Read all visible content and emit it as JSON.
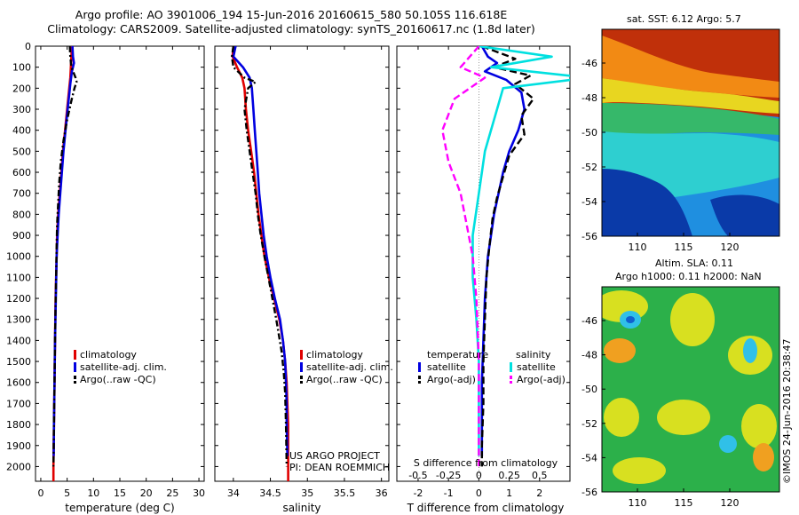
{
  "header": {
    "title_line1": "Argo profile: AO 3901006_194 15-Jun-2016 20160615_580 50.105S 116.618E",
    "title_line2": "Climatology: CARS2009. Satellite-adjusted climatology: synTS_20160617.nc (1.8d later)"
  },
  "chart_data": [
    {
      "type": "line",
      "panel": "temperature",
      "xlabel": "temperature (deg C)",
      "ylabel": "",
      "xlim": [
        -1,
        31
      ],
      "ylim": [
        2070,
        0
      ],
      "y_reversed": true,
      "xticks": [
        "0",
        "5",
        "10",
        "15",
        "20",
        "25",
        "30"
      ],
      "yticks": [
        "0",
        "100",
        "200",
        "300",
        "400",
        "500",
        "600",
        "700",
        "800",
        "900",
        "1000",
        "1100",
        "1200",
        "1300",
        "1400",
        "1500",
        "1600",
        "1700",
        "1800",
        "1900",
        "2000"
      ],
      "legend": [
        "climatology",
        "satellite-adj. clim.",
        "Argo(..raw -QC)"
      ],
      "series": [
        {
          "name": "climatology",
          "color": "#e00000",
          "style": "solid",
          "points": [
            [
              5.9,
              0
            ],
            [
              5.8,
              50
            ],
            [
              5.7,
              100
            ],
            [
              5.6,
              150
            ],
            [
              5.4,
              200
            ],
            [
              5.2,
              250
            ],
            [
              5.0,
              300
            ],
            [
              4.6,
              400
            ],
            [
              4.2,
              500
            ],
            [
              3.9,
              600
            ],
            [
              3.6,
              700
            ],
            [
              3.3,
              800
            ],
            [
              3.1,
              900
            ],
            [
              3.0,
              1000
            ],
            [
              2.8,
              1200
            ],
            [
              2.7,
              1400
            ],
            [
              2.6,
              1600
            ],
            [
              2.5,
              1800
            ],
            [
              2.4,
              2000
            ],
            [
              2.4,
              2070
            ]
          ]
        },
        {
          "name": "satellite-adj. clim.",
          "color": "#0000e0",
          "style": "solid",
          "points": [
            [
              6.0,
              0
            ],
            [
              6.1,
              50
            ],
            [
              6.3,
              80
            ],
            [
              5.9,
              120
            ],
            [
              5.6,
              180
            ],
            [
              5.4,
              230
            ],
            [
              5.1,
              300
            ],
            [
              4.7,
              400
            ],
            [
              4.3,
              500
            ],
            [
              4.0,
              600
            ],
            [
              3.7,
              700
            ],
            [
              3.4,
              800
            ],
            [
              3.2,
              900
            ],
            [
              3.0,
              1000
            ],
            [
              2.85,
              1200
            ],
            [
              2.7,
              1400
            ],
            [
              2.6,
              1600
            ],
            [
              2.5,
              1800
            ],
            [
              2.45,
              1950
            ]
          ]
        },
        {
          "name": "Argo(..raw -QC)",
          "color": "#000000",
          "style": "dashdot",
          "points": [
            [
              5.5,
              0
            ],
            [
              5.6,
              50
            ],
            [
              5.8,
              100
            ],
            [
              6.6,
              150
            ],
            [
              6.8,
              170
            ],
            [
              6.4,
              200
            ],
            [
              5.8,
              260
            ],
            [
              5.0,
              350
            ],
            [
              4.3,
              450
            ],
            [
              3.8,
              550
            ],
            [
              3.5,
              650
            ],
            [
              3.3,
              750
            ],
            [
              3.1,
              850
            ],
            [
              3.0,
              950
            ],
            [
              2.9,
              1100
            ],
            [
              2.75,
              1300
            ],
            [
              2.65,
              1500
            ],
            [
              2.55,
              1700
            ],
            [
              2.45,
              1900
            ],
            [
              2.4,
              2000
            ]
          ]
        }
      ]
    },
    {
      "type": "line",
      "panel": "salinity",
      "xlabel": "salinity",
      "ylabel": "",
      "xlim": [
        33.75,
        36.1
      ],
      "ylim": [
        2070,
        0
      ],
      "y_reversed": true,
      "xticks": [
        "34",
        "34.5",
        "35",
        "35.5",
        "36"
      ],
      "legend": [
        "climatology",
        "satellite-adj. clim.",
        "Argo(..raw -QC)"
      ],
      "annotation": [
        "US ARGO PROJECT",
        "PI: DEAN ROEMMICH"
      ],
      "series": [
        {
          "name": "climatology",
          "color": "#e00000",
          "style": "solid",
          "points": [
            [
              34.0,
              0
            ],
            [
              33.99,
              50
            ],
            [
              34.05,
              100
            ],
            [
              34.12,
              150
            ],
            [
              34.15,
              200
            ],
            [
              34.17,
              300
            ],
            [
              34.2,
              400
            ],
            [
              34.24,
              500
            ],
            [
              34.28,
              600
            ],
            [
              34.31,
              700
            ],
            [
              34.34,
              800
            ],
            [
              34.38,
              900
            ],
            [
              34.42,
              1000
            ],
            [
              34.48,
              1100
            ],
            [
              34.55,
              1200
            ],
            [
              34.62,
              1300
            ],
            [
              34.67,
              1400
            ],
            [
              34.7,
              1500
            ],
            [
              34.72,
              1600
            ],
            [
              34.73,
              1700
            ],
            [
              34.74,
              1800
            ],
            [
              34.74,
              2000
            ],
            [
              34.74,
              2070
            ]
          ]
        },
        {
          "name": "satellite-adj. clim.",
          "color": "#0000e0",
          "style": "solid",
          "points": [
            [
              34.03,
              0
            ],
            [
              34.0,
              50
            ],
            [
              34.13,
              100
            ],
            [
              34.22,
              150
            ],
            [
              34.25,
              200
            ],
            [
              34.27,
              300
            ],
            [
              34.29,
              400
            ],
            [
              34.31,
              500
            ],
            [
              34.33,
              600
            ],
            [
              34.35,
              700
            ],
            [
              34.38,
              800
            ],
            [
              34.41,
              900
            ],
            [
              34.45,
              1000
            ],
            [
              34.5,
              1100
            ],
            [
              34.56,
              1200
            ],
            [
              34.63,
              1300
            ],
            [
              34.67,
              1400
            ],
            [
              34.7,
              1500
            ],
            [
              34.71,
              1600
            ],
            [
              34.72,
              1700
            ],
            [
              34.72,
              1800
            ],
            [
              34.73,
              1950
            ]
          ]
        },
        {
          "name": "Argo(..raw -QC)",
          "color": "#000000",
          "style": "dashdot",
          "points": [
            [
              34.0,
              0
            ],
            [
              33.98,
              50
            ],
            [
              34.0,
              100
            ],
            [
              34.15,
              150
            ],
            [
              34.3,
              170
            ],
            [
              34.2,
              200
            ],
            [
              34.15,
              300
            ],
            [
              34.18,
              400
            ],
            [
              34.22,
              500
            ],
            [
              34.26,
              600
            ],
            [
              34.3,
              700
            ],
            [
              34.33,
              800
            ],
            [
              34.37,
              900
            ],
            [
              34.42,
              1000
            ],
            [
              34.5,
              1150
            ],
            [
              34.58,
              1300
            ],
            [
              34.65,
              1450
            ],
            [
              34.68,
              1550
            ],
            [
              34.7,
              1650
            ],
            [
              34.71,
              1800
            ],
            [
              34.72,
              2000
            ]
          ]
        }
      ]
    },
    {
      "type": "line",
      "panel": "difference",
      "xlabel": "T difference from climatology",
      "xlabel_top": "S difference from climatology",
      "ylabel": "",
      "xlim": [
        -2.7,
        3.0
      ],
      "ylim": [
        2070,
        0
      ],
      "y_reversed": true,
      "xticks": [
        "-2",
        "-1",
        "0",
        "1",
        "2"
      ],
      "xticks_top": [
        "-0.5",
        "-0.25",
        "0",
        "0.25",
        "0.5"
      ],
      "legend_headers": [
        "temperature",
        "salinity"
      ],
      "legend": [
        "satellite",
        "Argo(-adj)",
        "satellite",
        "Argo(-adj)"
      ],
      "series": [
        {
          "name": "temperature satellite",
          "color": "#0000e0",
          "style": "solid",
          "points": [
            [
              0.1,
              0
            ],
            [
              0.3,
              50
            ],
            [
              0.6,
              80
            ],
            [
              0.2,
              120
            ],
            [
              0.9,
              160
            ],
            [
              1.4,
              220
            ],
            [
              1.5,
              300
            ],
            [
              1.3,
              400
            ],
            [
              1.0,
              500
            ],
            [
              0.8,
              600
            ],
            [
              0.65,
              700
            ],
            [
              0.5,
              800
            ],
            [
              0.4,
              900
            ],
            [
              0.3,
              1000
            ],
            [
              0.2,
              1200
            ],
            [
              0.15,
              1400
            ],
            [
              0.1,
              1600
            ],
            [
              0.1,
              1800
            ],
            [
              0.1,
              1950
            ]
          ]
        },
        {
          "name": "temperature Argo(-adj)",
          "color": "#000000",
          "style": "dashed",
          "points": [
            [
              0.1,
              0
            ],
            [
              1.2,
              60
            ],
            [
              0.5,
              100
            ],
            [
              1.7,
              140
            ],
            [
              1.2,
              180
            ],
            [
              1.8,
              250
            ],
            [
              1.4,
              330
            ],
            [
              1.5,
              420
            ],
            [
              1.0,
              520
            ],
            [
              0.8,
              620
            ],
            [
              0.6,
              720
            ],
            [
              0.45,
              820
            ],
            [
              0.35,
              950
            ],
            [
              0.25,
              1100
            ],
            [
              0.2,
              1300
            ],
            [
              0.15,
              1500
            ],
            [
              0.15,
              1700
            ],
            [
              0.1,
              1900
            ],
            [
              0.1,
              2000
            ]
          ]
        },
        {
          "name": "salinity satellite",
          "color": "#00e0e0",
          "style": "solid",
          "points": [
            [
              0.0,
              0
            ],
            [
              0.6,
              50
            ],
            [
              0.1,
              100
            ],
            [
              0.9,
              150
            ],
            [
              0.2,
              200
            ],
            [
              0.15,
              300
            ],
            [
              0.05,
              500
            ],
            [
              0.0,
              700
            ],
            [
              -0.05,
              900
            ],
            [
              -0.05,
              1100
            ],
            [
              -0.02,
              1300
            ],
            [
              0.0,
              1500
            ],
            [
              0.0,
              1700
            ],
            [
              0.0,
              1950
            ]
          ]
        },
        {
          "name": "salinity Argo(-adj)",
          "color": "#ff00ff",
          "style": "dashed",
          "points": [
            [
              0.0,
              0
            ],
            [
              -0.15,
              100
            ],
            [
              0.05,
              150
            ],
            [
              -0.2,
              250
            ],
            [
              -0.3,
              400
            ],
            [
              -0.25,
              550
            ],
            [
              -0.15,
              700
            ],
            [
              -0.1,
              850
            ],
            [
              -0.05,
              1000
            ],
            [
              -0.02,
              1200
            ],
            [
              0.0,
              1500
            ],
            [
              0.0,
              1800
            ],
            [
              0.0,
              2000
            ]
          ]
        }
      ]
    }
  ],
  "map_sst": {
    "title": "sat. SST: 6.12 Argo: 5.7",
    "xticks": [
      "110",
      "115",
      "120"
    ],
    "yticks": [
      "-46",
      "-48",
      "-50",
      "-52",
      "-54",
      "-56"
    ]
  },
  "map_sla": {
    "title_line1": "Altim. SLA: 0.11",
    "title_line2": "Argo h1000: 0.11 h2000: NaN",
    "xticks": [
      "110",
      "115",
      "120"
    ],
    "yticks": [
      "-46",
      "-48",
      "-50",
      "-52",
      "-54",
      "-56"
    ]
  },
  "credit": "©IMOS 24-Jun-2016 20:38:47"
}
